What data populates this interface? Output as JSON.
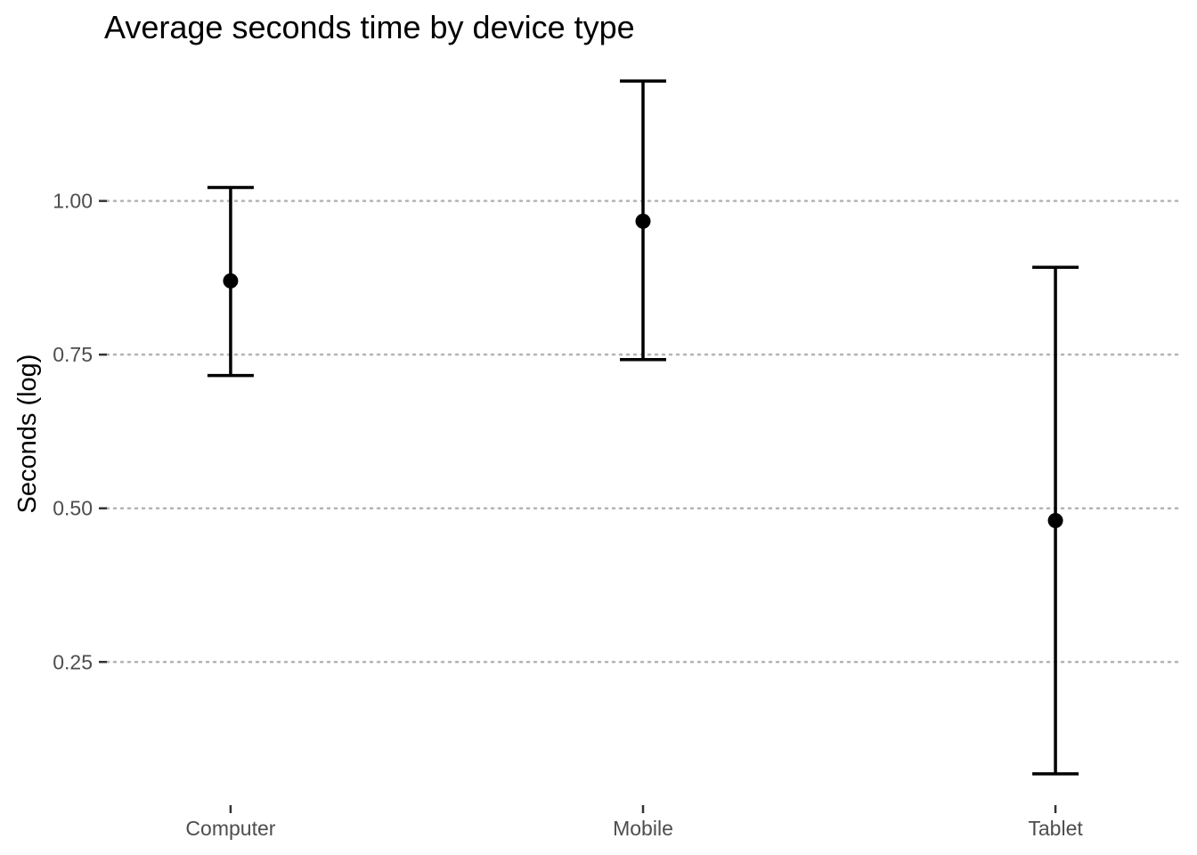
{
  "chart_data": {
    "type": "scatter",
    "title": "Average seconds time by device type",
    "xlabel": "",
    "ylabel": "Seconds (log)",
    "categories": [
      "Computer",
      "Mobile",
      "Tablet"
    ],
    "series": [
      {
        "values": [
          0.87,
          0.967,
          0.48
        ],
        "lower": [
          0.716,
          0.742,
          0.068
        ],
        "upper": [
          1.022,
          1.195,
          0.892
        ]
      }
    ],
    "yticks": [
      0.25,
      0.5,
      0.75,
      1.0
    ],
    "ytick_labels": [
      "0.25",
      "0.50",
      "0.75",
      "1.00"
    ],
    "ylim": [
      0.02,
      1.24
    ],
    "grid": "horizontal dotted major lines",
    "legend": "none",
    "colors": {
      "point": "#000000",
      "errorbar": "#000000",
      "grid": "#b3b3b3",
      "tick_text": "#4d4d4d"
    }
  }
}
